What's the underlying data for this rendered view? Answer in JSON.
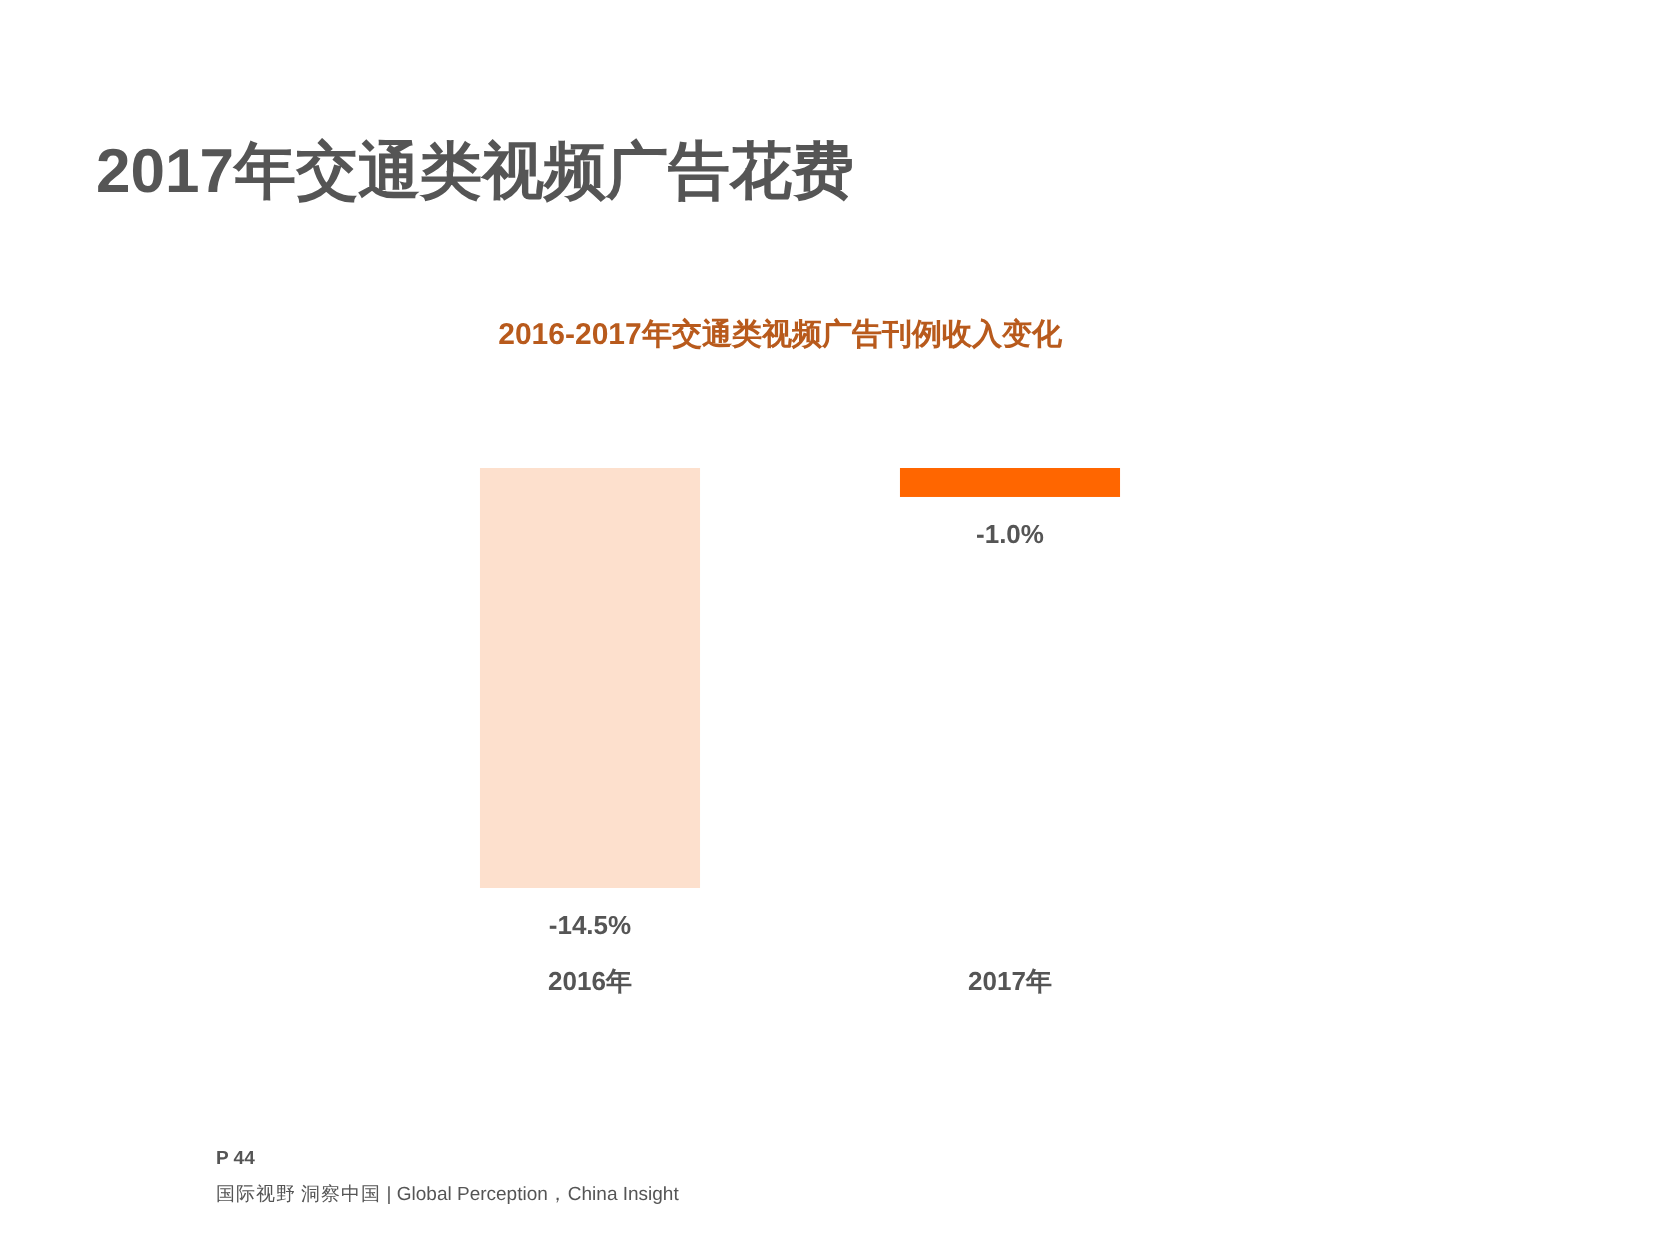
{
  "chart_data": {
    "type": "bar",
    "title": "2017年交通类视频广告花费",
    "subtitle": "2016-2017年交通类视频广告刊例收入变化",
    "categories": [
      "2016年",
      "2017年"
    ],
    "values": [
      -14.5,
      -1.0
    ],
    "colors": [
      "#fde0cd",
      "#ff6600"
    ],
    "value_labels": [
      "-14.5%",
      "-1.0%"
    ],
    "annotations": [
      "P 44",
      "国际视野 洞察中国 | Global Perception，China Insight"
    ]
  }
}
